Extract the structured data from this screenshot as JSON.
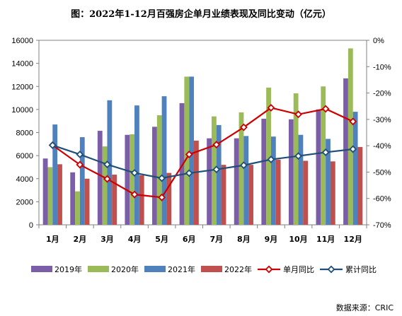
{
  "chart_data": {
    "type": "bar",
    "title": "图：2022年1-12月百强房企单月业绩表现及同比变动（亿元）",
    "source": "数据来源：CRIC",
    "categories": [
      "1月",
      "2月",
      "3月",
      "4月",
      "5月",
      "6月",
      "7月",
      "8月",
      "9月",
      "10月",
      "11月",
      "12月"
    ],
    "y_left": {
      "ylim": [
        0,
        16000
      ],
      "ticks": [
        "0",
        "2000",
        "4000",
        "6000",
        "8000",
        "10000",
        "12000",
        "14000",
        "16000"
      ]
    },
    "y_right": {
      "ylim": [
        -70,
        0
      ],
      "ticks": [
        "0%",
        "-10%",
        "-20%",
        "-30%",
        "-40%",
        "-50%",
        "-60%",
        "-70%"
      ]
    },
    "series": [
      {
        "name": "2019年",
        "kind": "bar",
        "axis": "left",
        "color": "#7B5EA7",
        "values": [
          5750,
          4550,
          8150,
          7800,
          8500,
          10550,
          7500,
          7500,
          9200,
          9150,
          10000,
          12700
        ]
      },
      {
        "name": "2020年",
        "kind": "bar",
        "axis": "left",
        "color": "#9BBB59",
        "values": [
          5000,
          2900,
          6800,
          7850,
          9500,
          12850,
          9400,
          9750,
          11900,
          11400,
          12000,
          15300
        ]
      },
      {
        "name": "2021年",
        "kind": "bar",
        "axis": "left",
        "color": "#4F81BD",
        "values": [
          8700,
          7600,
          10800,
          10350,
          11150,
          12850,
          8650,
          7700,
          7650,
          7800,
          7450,
          9800
        ]
      },
      {
        "name": "2022年",
        "kind": "bar",
        "axis": "left",
        "color": "#C0504D",
        "values": [
          5250,
          4000,
          4350,
          4300,
          4500,
          7300,
          5200,
          5200,
          5650,
          5550,
          5500,
          6750
        ]
      },
      {
        "name": "单月同比",
        "kind": "line",
        "axis": "right",
        "color": "#CC0000",
        "values": [
          -39.8,
          -47.2,
          -52.6,
          -58.5,
          -59.6,
          -43.3,
          -39.6,
          -33.0,
          -25.6,
          -28.1,
          -26.0,
          -30.8
        ]
      },
      {
        "name": "累计同比",
        "kind": "line",
        "axis": "right",
        "color": "#1F4E79",
        "values": [
          -39.8,
          -43.3,
          -47.1,
          -50.3,
          -52.3,
          -50.4,
          -49.0,
          -47.4,
          -45.2,
          -43.9,
          -42.5,
          -41.3
        ]
      }
    ]
  }
}
